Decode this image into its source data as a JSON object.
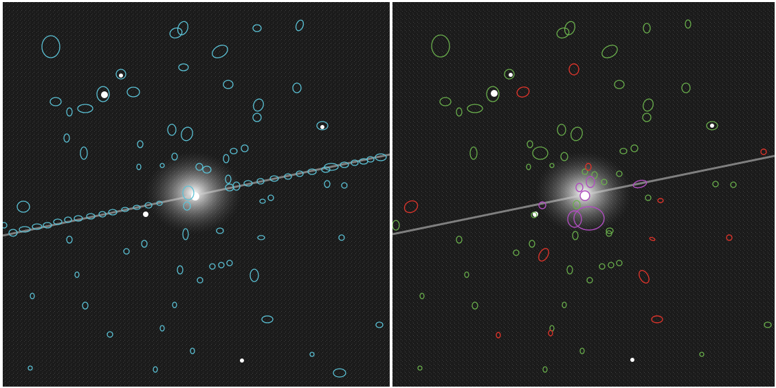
{
  "figure": {
    "panels": [
      {
        "id": "left",
        "description_role": "detections",
        "ellipse_color": "#5bc2d6"
      },
      {
        "id": "right",
        "description_role": "classified",
        "ellipse_colors": [
          "#6ab04c",
          "#d9342b",
          "#b04ec0"
        ]
      }
    ],
    "background_color": "#1a1a1a",
    "streak_color": "#cfcfcf"
  }
}
